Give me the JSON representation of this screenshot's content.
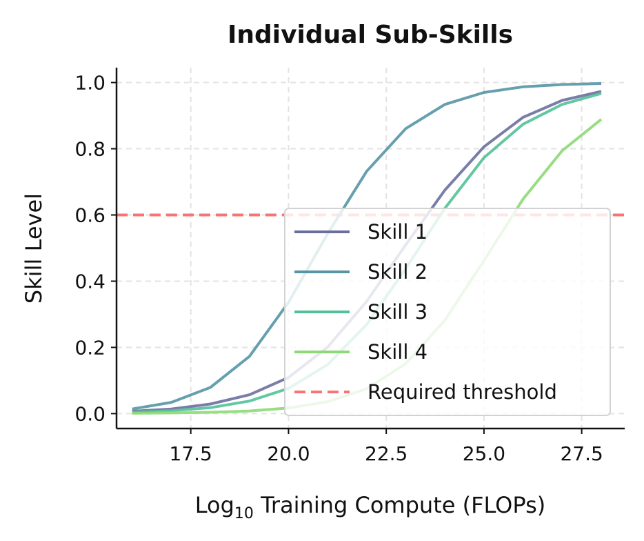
{
  "chart_data": {
    "type": "line",
    "title": "Individual Sub-Skills",
    "xlabel_main": "Log",
    "xlabel_sub": "10",
    "xlabel_rest": " Training Compute (FLOPs)",
    "ylabel": "Skill Level",
    "xlim": [
      15.6,
      28.6
    ],
    "ylim": [
      -0.045,
      1.045
    ],
    "xticks": [
      17.5,
      20.0,
      22.5,
      25.0,
      27.5
    ],
    "xtick_labels": [
      "17.5",
      "20.0",
      "22.5",
      "25.0",
      "27.5"
    ],
    "yticks": [
      0.0,
      0.2,
      0.4,
      0.6,
      0.8,
      1.0
    ],
    "ytick_labels": [
      "0.0",
      "0.2",
      "0.4",
      "0.6",
      "0.8",
      "1.0"
    ],
    "grid": true,
    "legend_position": "lower-right",
    "x": [
      16,
      17,
      18,
      19,
      20,
      21,
      22,
      23,
      24,
      25,
      26,
      27,
      28
    ],
    "series": [
      {
        "name": "Skill 1",
        "color": "#6b6f9f",
        "values": [
          0.007,
          0.014,
          0.029,
          0.057,
          0.109,
          0.201,
          0.339,
          0.51,
          0.675,
          0.806,
          0.895,
          0.946,
          0.973
        ]
      },
      {
        "name": "Skill 2",
        "color": "#5595a5",
        "values": [
          0.014,
          0.034,
          0.079,
          0.173,
          0.336,
          0.543,
          0.732,
          0.861,
          0.934,
          0.97,
          0.987,
          0.994,
          0.997
        ]
      },
      {
        "name": "Skill 3",
        "color": "#52c197",
        "values": [
          0.004,
          0.009,
          0.018,
          0.038,
          0.076,
          0.148,
          0.269,
          0.438,
          0.62,
          0.773,
          0.874,
          0.934,
          0.967
        ]
      },
      {
        "name": "Skill 4",
        "color": "#8dd977",
        "values": [
          0.001,
          0.002,
          0.004,
          0.008,
          0.017,
          0.036,
          0.075,
          0.151,
          0.282,
          0.462,
          0.648,
          0.794,
          0.889
        ]
      }
    ],
    "threshold": {
      "name": "Required threshold",
      "value": 0.6,
      "color": "#f87474"
    }
  }
}
